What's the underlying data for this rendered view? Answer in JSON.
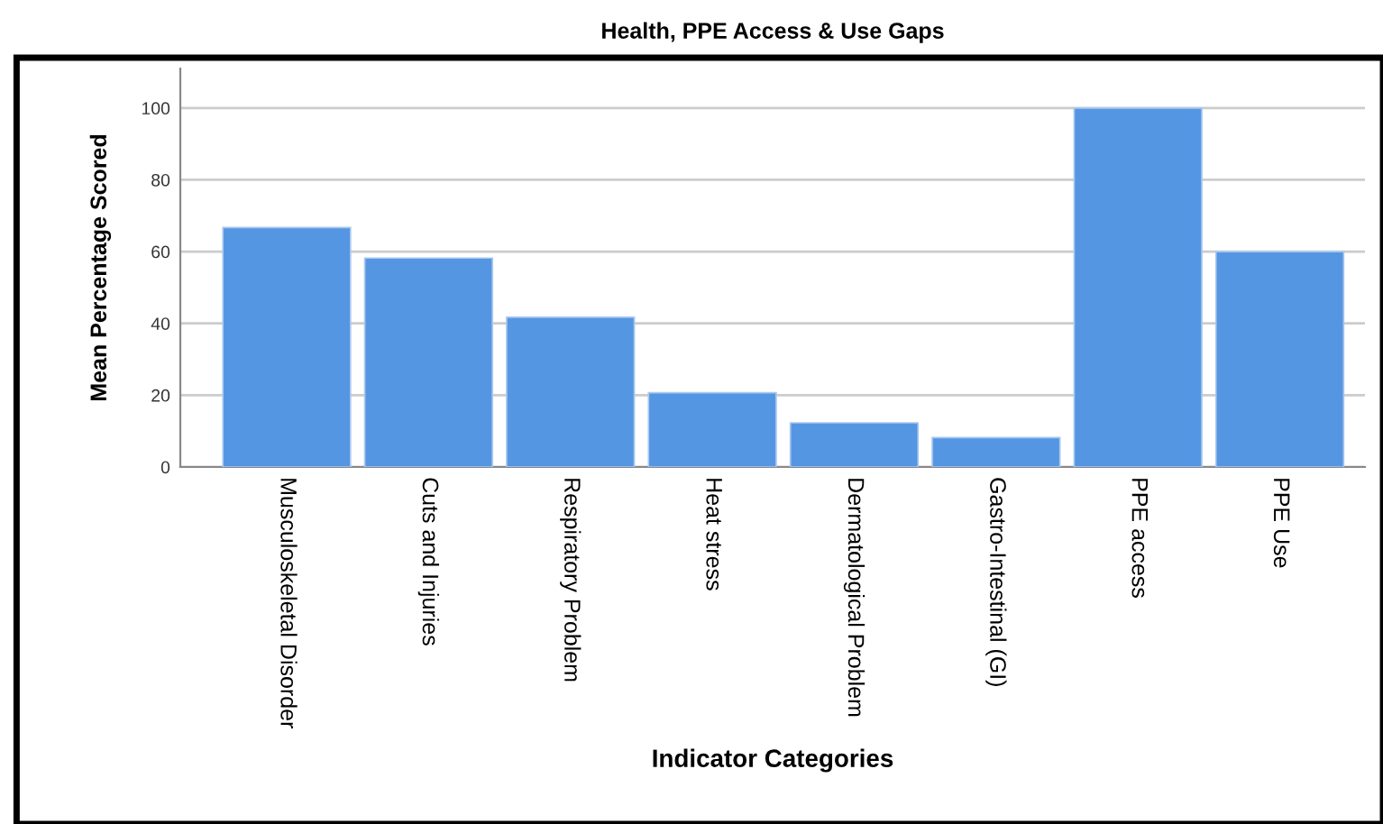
{
  "chart_data": {
    "type": "bar",
    "title": "Health, PPE Access & Use Gaps",
    "xlabel": "Indicator Categories",
    "ylabel": "Mean Percentage Scored",
    "categories": [
      "Musculoskeletal Disorder",
      "Cuts and Injuries",
      "Respiratory Problem",
      "Heat stress",
      "Dermatological Problem",
      "Gastro-Intestinal (GI)",
      "PPE access",
      "PPE Use"
    ],
    "values": [
      66.7,
      58.2,
      41.7,
      20.7,
      12.3,
      8.2,
      100,
      60
    ],
    "color": "#5596e3",
    "ylim": [
      0,
      111
    ],
    "yticks": [
      0,
      20,
      40,
      60,
      80,
      100
    ],
    "grid": "y"
  }
}
